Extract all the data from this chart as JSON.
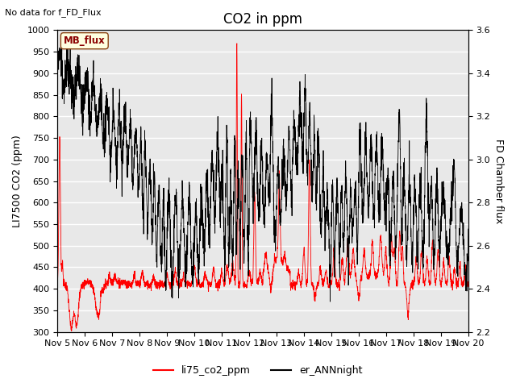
{
  "title": "CO2 in ppm",
  "top_left_text": "No data for f_FD_Flux",
  "mb_flux_label": "MB_flux",
  "ylabel_left": "LI7500 CO2 (ppm)",
  "ylabel_right": "FD Chamber flux",
  "ylim_left": [
    300,
    1000
  ],
  "ylim_right": [
    2.2,
    3.6
  ],
  "xtick_labels": [
    "Nov 5",
    "Nov 6",
    "Nov 7",
    "Nov 8",
    "Nov 9",
    "Nov 10",
    "Nov 11",
    "Nov 12",
    "Nov 13",
    "Nov 14",
    "Nov 15",
    "Nov 16",
    "Nov 17",
    "Nov 18",
    "Nov 19",
    "Nov 20"
  ],
  "axes_facecolor": "#e8e8e8",
  "grid_color": "white",
  "title_fontsize": 12,
  "label_fontsize": 9,
  "tick_fontsize": 8
}
